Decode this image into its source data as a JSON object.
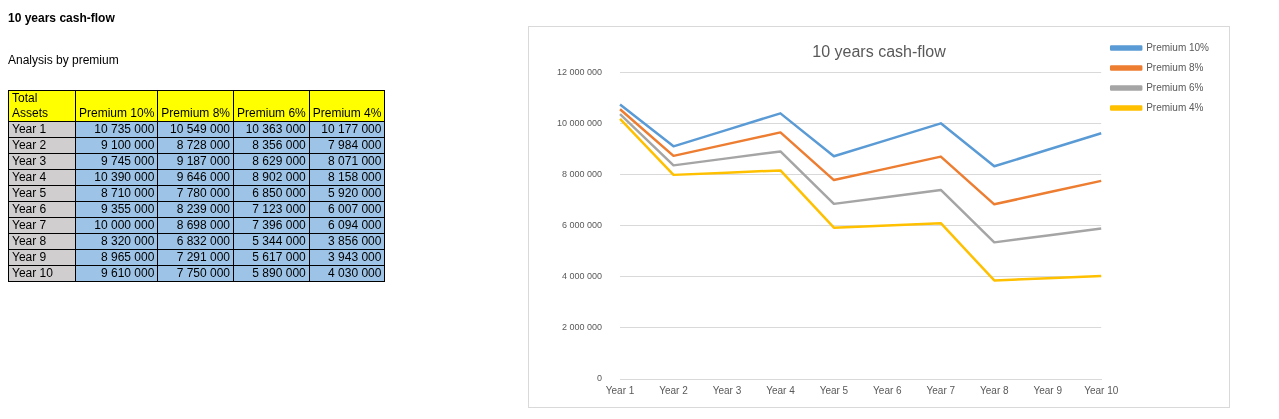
{
  "chart_data": [
    {
      "type": "other",
      "title": "10 years cash-flow",
      "subtitle": "Analysis by premium",
      "categories": [
        "Total Assets",
        "Premium 10%",
        "Premium 8%",
        "Premium 6%",
        "Premium 4%"
      ],
      "annotations": [
        "Year 1",
        "10 735 000",
        "10 549 000",
        "10 363 000",
        "10 177 000",
        "Year 2",
        "9 100 000",
        "8 728 000",
        "8 356 000",
        "7 984 000",
        "Year 3",
        "9 745 000",
        "9 187 000",
        "8 629 000",
        "8 071 000",
        "Year 4",
        "10 390 000",
        "9 646 000",
        "8 902 000",
        "8 158 000",
        "Year 5",
        "8 710 000",
        "7 780 000",
        "6 850 000",
        "5 920 000",
        "Year 6",
        "9 355 000",
        "8 239 000",
        "7 123 000",
        "6 007 000",
        "Year 7",
        "10 000 000",
        "8 698 000",
        "7 396 000",
        "6 094 000",
        "Year 8",
        "8 320 000",
        "6 832 000",
        "5 344 000",
        "3 856 000",
        "Year 9",
        "8 965 000",
        "7 291 000",
        "5 617 000",
        "3 943 000",
        "Year 10",
        "9 610 000",
        "7 750 000",
        "5 890 000",
        "4 030 000"
      ]
    },
    {
      "type": "line",
      "title": "10 years cash-flow",
      "categories": [
        "Year 1",
        "Year 2",
        "Year 3",
        "Year 4",
        "Year 5",
        "Year 6",
        "Year 7",
        "Year 8",
        "Year 9",
        "Year 10"
      ],
      "series": [
        {
          "name": "Premium 10%",
          "color": "#5b9bd5",
          "values": [
            10735000,
            9100000,
            9745000,
            10390000,
            8710000,
            9355000,
            10000000,
            8320000,
            8965000,
            9610000
          ]
        },
        {
          "name": "Premium 8%",
          "color": "#ed7d31",
          "values": [
            10549000,
            8728000,
            9187000,
            9646000,
            7780000,
            8239000,
            8698000,
            6832000,
            7291000,
            7750000
          ]
        },
        {
          "name": "Premium 6%",
          "color": "#a5a5a5",
          "values": [
            10363000,
            8356000,
            8629000,
            8902000,
            6850000,
            7123000,
            7396000,
            5344000,
            5617000,
            5890000
          ]
        },
        {
          "name": "Premium 4%",
          "color": "#ffc000",
          "values": [
            10177000,
            7984000,
            8071000,
            8158000,
            5920000,
            6007000,
            6094000,
            3856000,
            3943000,
            4030000
          ]
        }
      ],
      "ylim": [
        0,
        12000000
      ],
      "yticks": [
        0,
        {
          "value": 2000000,
          "label": "2 000 000"
        },
        {
          "value": 4000000,
          "label": "4 000 000"
        },
        {
          "value": 6000000,
          "label": "6 000 000"
        },
        {
          "value": 8000000,
          "label": "8 000 000"
        },
        {
          "value": 10000000,
          "label": "10 000 000"
        },
        {
          "value": 12000000,
          "label": "12 000 000"
        }
      ],
      "grid": "y",
      "legend": "top right",
      "marker": "none",
      "line_style": "solid"
    }
  ]
}
